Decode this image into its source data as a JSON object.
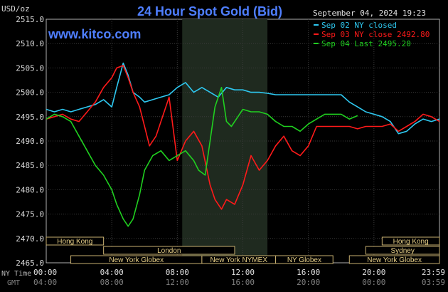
{
  "chart_data": {
    "type": "line",
    "title": "24 Hour Spot Gold (Bid)",
    "source": "www.kitco.com",
    "units": "USD/oz",
    "date_stamp": "September 04, 2024 19:23",
    "ylim": [
      2465,
      2515
    ],
    "y_ticks": [
      "2515.0",
      "2510.0",
      "2505.0",
      "2500.0",
      "2495.0",
      "2490.0",
      "2485.0",
      "2480.0",
      "2475.0",
      "2470.0",
      "2465.0"
    ],
    "x_range_hours": [
      0,
      24
    ],
    "x_row1_label": "NY Time",
    "x_row2_label": "GMT",
    "x_ticks_ny": [
      "00:00",
      "04:00",
      "08:00",
      "12:00",
      "16:00",
      "20:00",
      "23:59"
    ],
    "x_ticks_gmt": [
      "04:00",
      "08:00",
      "12:00",
      "16:00",
      "20:00",
      "00:00",
      "03:59"
    ],
    "shaded_region_hours": [
      8.3,
      13.5
    ],
    "sessions": [
      {
        "label": "Hong Kong",
        "start": 0,
        "end": 3.5,
        "row": 0
      },
      {
        "label": "London",
        "start": 3.5,
        "end": 11.5,
        "row": 1
      },
      {
        "label": "New York Globex",
        "start": 1.5,
        "end": 9.5,
        "row": 2
      },
      {
        "label": "New York NYMEX",
        "start": 9.5,
        "end": 14,
        "row": 2
      },
      {
        "label": "NY Globex",
        "start": 14,
        "end": 17.5,
        "row": 2
      },
      {
        "label": "Hong Kong",
        "start": 20.5,
        "end": 24,
        "row": 0
      },
      {
        "label": "Sydney",
        "start": 19.5,
        "end": 24,
        "row": 1
      },
      {
        "label": "New York Globex",
        "start": 18.5,
        "end": 24,
        "row": 2
      }
    ],
    "series": [
      {
        "name": "Sep 02 NY closed",
        "color": "#2ec8f0",
        "x": [
          0,
          0.5,
          1.0,
          1.5,
          2.0,
          2.5,
          3.0,
          3.5,
          4.0,
          4.3,
          4.7,
          5.0,
          5.3,
          5.7,
          6.0,
          6.5,
          7.0,
          7.5,
          8.0,
          8.5,
          9.0,
          9.5,
          10.0,
          10.5,
          11.0,
          11.5,
          12.0,
          12.5,
          13.0,
          13.5,
          14.0,
          14.5,
          15.0,
          16.0,
          17.0,
          18.0,
          18.5,
          19.0,
          19.5,
          20.0,
          20.5,
          21.0,
          21.5,
          22.0,
          22.5,
          23.0,
          23.5,
          24.0
        ],
        "values": [
          2496.5,
          2496,
          2496.5,
          2496,
          2496.5,
          2497,
          2497.5,
          2498.5,
          2497,
          2501,
          2506,
          2503.5,
          2500,
          2499,
          2498,
          2498.5,
          2499,
          2499.5,
          2501,
          2502,
          2500,
          2501,
          2500,
          2499,
          2501,
          2500.5,
          2500.5,
          2500,
          2500,
          2499.8,
          2499.5,
          2499.5,
          2499.5,
          2499.5,
          2499.5,
          2499.5,
          2498,
          2497,
          2496,
          2495.5,
          2495,
          2494,
          2491.5,
          2492,
          2493.5,
          2494.5,
          2494,
          2494.5
        ]
      },
      {
        "name": "Sep 03 NY close 2492.80",
        "color": "#ff1a1a",
        "x": [
          0,
          0.5,
          1.0,
          1.5,
          2.0,
          2.5,
          3.0,
          3.5,
          4.0,
          4.3,
          4.7,
          5.0,
          5.3,
          5.7,
          6.0,
          6.3,
          6.7,
          7.0,
          7.5,
          8.0,
          8.5,
          9.0,
          9.5,
          10.0,
          10.3,
          10.7,
          11.0,
          11.5,
          12.0,
          12.5,
          13.0,
          13.5,
          14.0,
          14.5,
          15.0,
          15.5,
          16.0,
          16.5,
          17.0,
          18.0,
          18.5,
          19.0,
          19.5,
          20.0,
          20.5,
          21.0,
          21.5,
          22.0,
          22.5,
          23.0,
          23.5,
          24.0
        ],
        "values": [
          2494.5,
          2495,
          2495.5,
          2494.5,
          2494,
          2496,
          2498,
          2501,
          2503,
          2505,
          2505.5,
          2503,
          2500,
          2497,
          2493,
          2489,
          2491,
          2494,
          2499,
          2486,
          2490,
          2492,
          2489,
          2481,
          2478,
          2476,
          2478,
          2477,
          2481,
          2487,
          2484,
          2486,
          2489,
          2491,
          2488,
          2487,
          2489,
          2493,
          2493,
          2493,
          2493,
          2492.5,
          2493,
          2493,
          2493,
          2493.5,
          2492,
          2493,
          2494,
          2495.5,
          2495,
          2494
        ]
      },
      {
        "name": "Sep 04 Last 2495.20",
        "color": "#20d020",
        "x": [
          0,
          0.5,
          1.0,
          1.5,
          2.0,
          2.5,
          3.0,
          3.5,
          4.0,
          4.3,
          4.7,
          5.0,
          5.3,
          5.7,
          6.0,
          6.5,
          7.0,
          7.5,
          8.0,
          8.5,
          9.0,
          9.3,
          9.7,
          10.0,
          10.3,
          10.7,
          11.0,
          11.3,
          11.7,
          12.0,
          12.5,
          13.0,
          13.5,
          14.0,
          14.5,
          15.0,
          15.5,
          16.0,
          16.5,
          17.0,
          17.5,
          18.0,
          18.5,
          19.0
        ],
        "values": [
          2494.5,
          2495.5,
          2495,
          2494,
          2491,
          2488,
          2485,
          2483,
          2480,
          2477,
          2474,
          2472.5,
          2474,
          2479,
          2484,
          2487,
          2488,
          2486,
          2487,
          2488,
          2486,
          2484,
          2483,
          2490,
          2497,
          2501,
          2494,
          2493,
          2495,
          2496.5,
          2496,
          2496,
          2495.5,
          2494,
          2493,
          2493,
          2492,
          2493.5,
          2494.5,
          2495.5,
          2495.5,
          2495.5,
          2494.5,
          2495.2
        ]
      }
    ]
  }
}
